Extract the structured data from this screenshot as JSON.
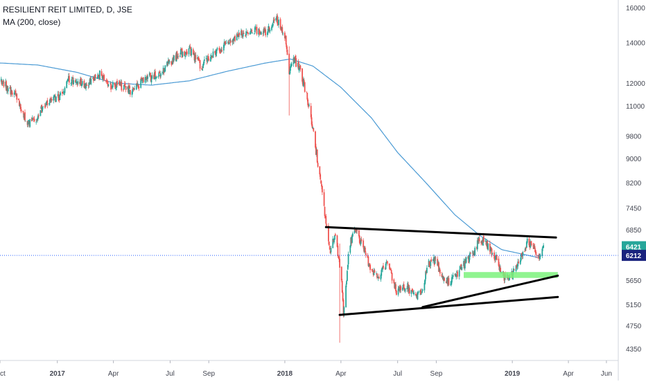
{
  "header": {
    "title": "RESILIENT REIT LIMITED, D, JSE",
    "indicator": "MA (200, close)"
  },
  "colors": {
    "up": "#26a69a",
    "down": "#ef5350",
    "ma": "#4a9ad4",
    "price_line": "#2962ff",
    "last_label_bg": "#1a237e",
    "prev_label_bg": "#26a69a",
    "trendline": "#000000",
    "support_zone": "#7cf27c",
    "axis_text": "#434651"
  },
  "price_labels": {
    "last": "6212",
    "prev": "6421"
  },
  "chart_data": {
    "type": "candlestick",
    "title": "RESILIENT REIT LIMITED, D, JSE",
    "xlabel": "",
    "ylabel": "",
    "y_scale": "log",
    "ylim": [
      4100,
      16400
    ],
    "xlim": [
      "2016-10-01",
      "2019-06-20"
    ],
    "y_ticks": [
      16000,
      14000,
      12000,
      11000,
      9800,
      9000,
      8200,
      7450,
      6850,
      5650,
      5150,
      4750,
      4350
    ],
    "y_tick_labels": [
      "16000",
      "14000",
      "12000",
      "11000",
      "9800",
      "9000",
      "8200",
      "7450",
      "6850",
      "5650",
      "5150",
      "4750",
      "4350"
    ],
    "x_ticks": [
      {
        "date": "2016-10-01",
        "label": "Oct",
        "bold": false
      },
      {
        "date": "2017-01-01",
        "label": "2017",
        "bold": true
      },
      {
        "date": "2017-04-01",
        "label": "Apr",
        "bold": false
      },
      {
        "date": "2017-07-01",
        "label": "Jul",
        "bold": false
      },
      {
        "date": "2017-09-01",
        "label": "Sep",
        "bold": false
      },
      {
        "date": "2018-01-01",
        "label": "2018",
        "bold": true
      },
      {
        "date": "2018-04-01",
        "label": "Apr",
        "bold": false
      },
      {
        "date": "2018-07-01",
        "label": "Jul",
        "bold": false
      },
      {
        "date": "2018-09-01",
        "label": "Sep",
        "bold": false
      },
      {
        "date": "2019-01-01",
        "label": "2019",
        "bold": true
      },
      {
        "date": "2019-04-01",
        "label": "Apr",
        "bold": false
      },
      {
        "date": "2019-06-01",
        "label": "Jun",
        "bold": false
      }
    ],
    "price_anchors": [
      [
        "2016-10-01",
        12100
      ],
      [
        "2016-10-25",
        11500
      ],
      [
        "2016-11-15",
        10300
      ],
      [
        "2016-11-28",
        10450
      ],
      [
        "2016-12-15",
        11200
      ],
      [
        "2017-01-10",
        11400
      ],
      [
        "2017-01-20",
        12200
      ],
      [
        "2017-02-15",
        11900
      ],
      [
        "2017-03-10",
        12400
      ],
      [
        "2017-03-25",
        11800
      ],
      [
        "2017-04-10",
        11900
      ],
      [
        "2017-05-01",
        11600
      ],
      [
        "2017-05-20",
        12200
      ],
      [
        "2017-06-15",
        12400
      ],
      [
        "2017-07-01",
        13000
      ],
      [
        "2017-07-15",
        13400
      ],
      [
        "2017-08-01",
        13600
      ],
      [
        "2017-08-20",
        12800
      ],
      [
        "2017-09-10",
        13400
      ],
      [
        "2017-10-01",
        14000
      ],
      [
        "2017-10-20",
        14400
      ],
      [
        "2017-11-10",
        14700
      ],
      [
        "2017-12-01",
        14600
      ],
      [
        "2017-12-20",
        15300
      ],
      [
        "2018-01-02",
        14200
      ],
      [
        "2018-01-08",
        12500
      ],
      [
        "2018-01-15",
        13200
      ],
      [
        "2018-01-25",
        12600
      ],
      [
        "2018-02-05",
        11500
      ],
      [
        "2018-02-15",
        10000
      ],
      [
        "2018-02-25",
        8600
      ],
      [
        "2018-03-05",
        7400
      ],
      [
        "2018-03-10",
        6850
      ],
      [
        "2018-03-15",
        6300
      ],
      [
        "2018-03-22",
        6700
      ],
      [
        "2018-03-28",
        6200
      ],
      [
        "2018-04-02",
        5600
      ],
      [
        "2018-04-05",
        5000
      ],
      [
        "2018-04-10",
        5700
      ],
      [
        "2018-04-15",
        6500
      ],
      [
        "2018-04-25",
        6800
      ],
      [
        "2018-05-05",
        6500
      ],
      [
        "2018-05-15",
        6050
      ],
      [
        "2018-05-30",
        5700
      ],
      [
        "2018-06-15",
        6000
      ],
      [
        "2018-06-30",
        5400
      ],
      [
        "2018-07-15",
        5550
      ],
      [
        "2018-07-30",
        5250
      ],
      [
        "2018-08-10",
        5500
      ],
      [
        "2018-08-20",
        6000
      ],
      [
        "2018-08-30",
        6100
      ],
      [
        "2018-09-15",
        5600
      ],
      [
        "2018-09-30",
        5700
      ],
      [
        "2018-10-15",
        6000
      ],
      [
        "2018-10-30",
        6250
      ],
      [
        "2018-11-10",
        6650
      ],
      [
        "2018-11-25",
        6400
      ],
      [
        "2018-12-05",
        6150
      ],
      [
        "2018-12-20",
        5700
      ],
      [
        "2019-01-01",
        5750
      ],
      [
        "2019-01-15",
        6200
      ],
      [
        "2019-01-25",
        6550
      ],
      [
        "2019-02-05",
        6450
      ],
      [
        "2019-02-12",
        6150
      ],
      [
        "2019-02-20",
        6421
      ]
    ],
    "ma200_anchors": [
      [
        "2016-10-01",
        12950
      ],
      [
        "2016-12-01",
        12850
      ],
      [
        "2017-02-01",
        12500
      ],
      [
        "2017-04-01",
        12000
      ],
      [
        "2017-06-01",
        11900
      ],
      [
        "2017-08-01",
        12100
      ],
      [
        "2017-10-01",
        12550
      ],
      [
        "2017-12-01",
        12950
      ],
      [
        "2018-01-10",
        13150
      ],
      [
        "2018-02-15",
        12800
      ],
      [
        "2018-04-01",
        11800
      ],
      [
        "2018-05-20",
        10500
      ],
      [
        "2018-07-01",
        9200
      ],
      [
        "2018-08-20",
        8100
      ],
      [
        "2018-10-01",
        7250
      ],
      [
        "2018-11-10",
        6700
      ],
      [
        "2018-12-15",
        6350
      ],
      [
        "2019-02-15",
        6150
      ]
    ],
    "wick_events": [
      {
        "date": "2018-01-08",
        "low": 10600,
        "high": 13800
      },
      {
        "date": "2018-03-30",
        "low": 4450,
        "high": 6500
      }
    ],
    "horizontal_price_line": 6212,
    "annotations": {
      "trendlines": [
        {
          "from": [
            "2018-03-08",
            6920
          ],
          "to": [
            "2019-03-12",
            6650
          ]
        },
        {
          "from": [
            "2018-03-30",
            4950
          ],
          "to": [
            "2019-03-15",
            5300
          ]
        },
        {
          "from": [
            "2018-08-10",
            5100
          ],
          "to": [
            "2019-03-15",
            5750
          ]
        }
      ],
      "zones": [
        {
          "from": "2018-10-15",
          "to": "2019-03-15",
          "low": 5700,
          "high": 5830
        }
      ]
    }
  }
}
